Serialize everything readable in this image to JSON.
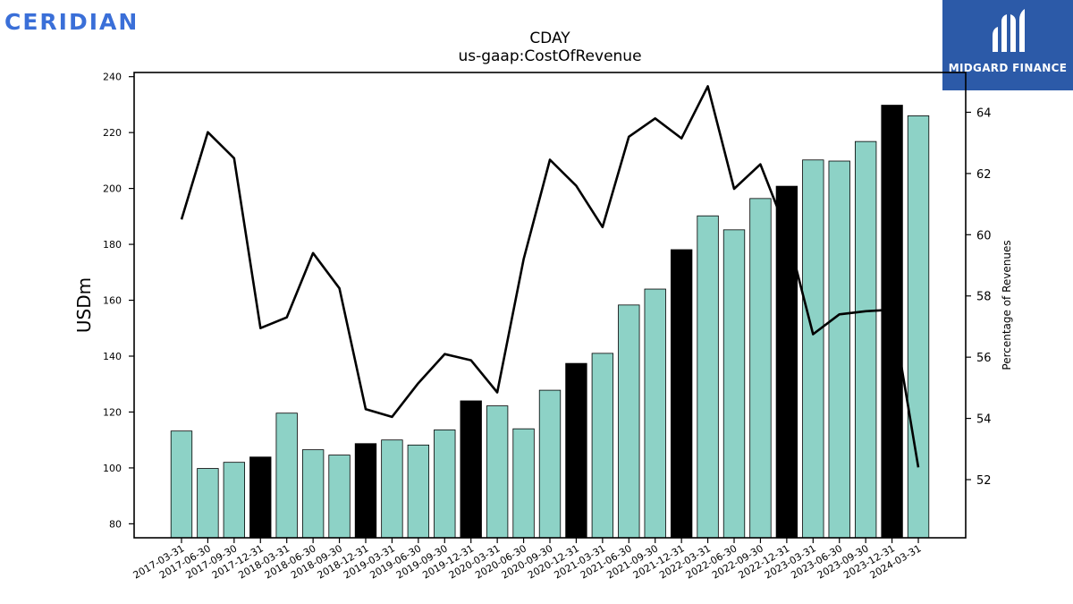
{
  "brand": {
    "name": "CERIDIAN",
    "color": "#3a6fd8"
  },
  "logo": {
    "text": "MIDGARD FINANCE",
    "background": "#2c5aa8",
    "icon": "midgard-m-icon"
  },
  "colors": {
    "bar_default": "#8dd2c6",
    "bar_highlight": "#000000",
    "line": "#000000"
  },
  "chart_data": {
    "type": "bar",
    "title": "CDAY",
    "subtitle": "us-gaap:CostOfRevenue",
    "ylabel": "USDm",
    "y2label": "Percentage of Revenues",
    "ylim": [
      75,
      241.5
    ],
    "y2lim": [
      50.1,
      65.3
    ],
    "yticks": [
      80,
      100,
      120,
      140,
      160,
      180,
      200,
      220,
      240
    ],
    "y2ticks": [
      52,
      54,
      56,
      58,
      60,
      62,
      64
    ],
    "grid": false,
    "categories": [
      "2017-03-31",
      "2017-06-30",
      "2017-09-30",
      "2017-12-31",
      "2018-03-31",
      "2018-06-30",
      "2018-09-30",
      "2018-12-31",
      "2019-03-31",
      "2019-06-30",
      "2019-09-30",
      "2019-12-31",
      "2020-03-31",
      "2020-06-30",
      "2020-09-30",
      "2020-12-31",
      "2021-03-31",
      "2021-06-30",
      "2021-09-30",
      "2021-12-31",
      "2022-03-31",
      "2022-06-30",
      "2022-09-30",
      "2022-12-31",
      "2023-03-31",
      "2023-06-30",
      "2023-09-30",
      "2023-12-31",
      "2024-03-31"
    ],
    "highlight": [
      false,
      false,
      false,
      true,
      false,
      false,
      false,
      true,
      false,
      false,
      false,
      true,
      false,
      false,
      false,
      true,
      false,
      false,
      false,
      true,
      false,
      false,
      false,
      true,
      false,
      false,
      false,
      true,
      false
    ],
    "series": [
      {
        "type": "bar",
        "axis": "left",
        "values": [
          113.2,
          99.8,
          102.0,
          103.9,
          119.6,
          106.5,
          104.6,
          108.7,
          110.0,
          108.2,
          113.6,
          124.0,
          122.2,
          114.0,
          127.8,
          137.4,
          141.0,
          158.3,
          164.0,
          178.1,
          190.2,
          185.2,
          196.4,
          200.8,
          210.2,
          209.8,
          216.8,
          229.8,
          226.0
        ]
      },
      {
        "type": "line",
        "axis": "right",
        "values": [
          60.5,
          63.35,
          62.5,
          56.95,
          57.3,
          59.4,
          58.25,
          54.3,
          54.05,
          55.15,
          56.1,
          55.9,
          54.85,
          59.2,
          62.45,
          61.6,
          60.25,
          63.2,
          63.8,
          63.15,
          64.85,
          61.5,
          62.3,
          60.1,
          56.75,
          57.4,
          57.5,
          57.55,
          52.4
        ]
      }
    ]
  }
}
